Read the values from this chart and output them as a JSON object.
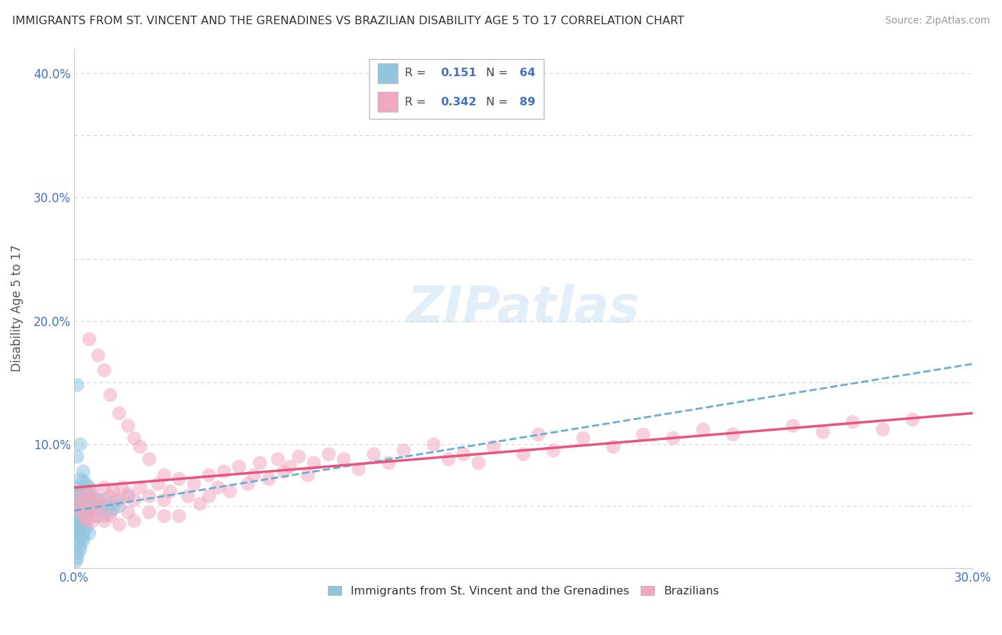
{
  "title": "IMMIGRANTS FROM ST. VINCENT AND THE GRENADINES VS BRAZILIAN DISABILITY AGE 5 TO 17 CORRELATION CHART",
  "source": "Source: ZipAtlas.com",
  "ylabel": "Disability Age 5 to 17",
  "xlim": [
    0.0,
    0.3
  ],
  "ylim": [
    0.0,
    0.42
  ],
  "xtick_vals": [
    0.0,
    0.05,
    0.1,
    0.15,
    0.2,
    0.25,
    0.3
  ],
  "xticklabels": [
    "0.0%",
    "",
    "",
    "",
    "",
    "",
    "30.0%"
  ],
  "ytick_vals": [
    0.0,
    0.05,
    0.1,
    0.15,
    0.2,
    0.25,
    0.3,
    0.35,
    0.4
  ],
  "yticklabels": [
    "",
    "",
    "10.0%",
    "",
    "20.0%",
    "",
    "30.0%",
    "",
    "40.0%"
  ],
  "blue_color": "#92C5E0",
  "pink_color": "#F4A8C0",
  "blue_line_color": "#6AADD5",
  "pink_line_color": "#E8557A",
  "tick_color": "#4472c4",
  "legend_text_color": "#4472c4",
  "legend_blue_r": "0.151",
  "legend_blue_n": "64",
  "legend_pink_r": "0.342",
  "legend_pink_n": "89",
  "grid_color": "#cccccc",
  "watermark_text": "ZIPatlas",
  "blue_x": [
    0.0005,
    0.001,
    0.001,
    0.001,
    0.001,
    0.001,
    0.0015,
    0.0015,
    0.002,
    0.002,
    0.002,
    0.002,
    0.002,
    0.002,
    0.0025,
    0.003,
    0.003,
    0.003,
    0.003,
    0.003,
    0.004,
    0.004,
    0.004,
    0.004,
    0.005,
    0.005,
    0.005,
    0.006,
    0.006,
    0.007,
    0.007,
    0.008,
    0.009,
    0.01,
    0.01,
    0.011,
    0.012,
    0.013,
    0.014,
    0.015,
    0.018,
    0.001,
    0.001,
    0.001,
    0.002,
    0.002,
    0.003,
    0.003,
    0.004,
    0.005,
    0.001,
    0.002,
    0.003,
    0.004,
    0.0005,
    0.001,
    0.001,
    0.002,
    0.002,
    0.003,
    0.001,
    0.002,
    0.001,
    0.001
  ],
  "blue_y": [
    0.065,
    0.05,
    0.055,
    0.06,
    0.045,
    0.038,
    0.052,
    0.042,
    0.048,
    0.055,
    0.04,
    0.06,
    0.035,
    0.058,
    0.052,
    0.045,
    0.062,
    0.038,
    0.055,
    0.07,
    0.048,
    0.042,
    0.062,
    0.038,
    0.055,
    0.045,
    0.065,
    0.048,
    0.058,
    0.052,
    0.042,
    0.055,
    0.048,
    0.055,
    0.042,
    0.05,
    0.045,
    0.048,
    0.055,
    0.05,
    0.058,
    0.03,
    0.028,
    0.032,
    0.025,
    0.035,
    0.03,
    0.022,
    0.032,
    0.028,
    0.148,
    0.1,
    0.078,
    0.068,
    0.005,
    0.008,
    0.012,
    0.018,
    0.015,
    0.025,
    0.09,
    0.072,
    0.02,
    0.06
  ],
  "pink_x": [
    0.001,
    0.002,
    0.003,
    0.003,
    0.004,
    0.004,
    0.005,
    0.005,
    0.006,
    0.006,
    0.007,
    0.008,
    0.008,
    0.009,
    0.01,
    0.01,
    0.012,
    0.012,
    0.013,
    0.015,
    0.015,
    0.016,
    0.018,
    0.018,
    0.02,
    0.02,
    0.022,
    0.025,
    0.025,
    0.028,
    0.03,
    0.03,
    0.032,
    0.035,
    0.035,
    0.038,
    0.04,
    0.042,
    0.045,
    0.045,
    0.048,
    0.05,
    0.052,
    0.055,
    0.058,
    0.06,
    0.062,
    0.065,
    0.068,
    0.07,
    0.072,
    0.075,
    0.078,
    0.08,
    0.085,
    0.09,
    0.095,
    0.1,
    0.105,
    0.11,
    0.12,
    0.125,
    0.13,
    0.135,
    0.14,
    0.15,
    0.155,
    0.16,
    0.17,
    0.18,
    0.19,
    0.2,
    0.21,
    0.22,
    0.24,
    0.25,
    0.26,
    0.27,
    0.28,
    0.005,
    0.008,
    0.01,
    0.012,
    0.015,
    0.018,
    0.02,
    0.022,
    0.025,
    0.03
  ],
  "pink_y": [
    0.055,
    0.048,
    0.06,
    0.042,
    0.052,
    0.038,
    0.058,
    0.045,
    0.062,
    0.038,
    0.048,
    0.055,
    0.042,
    0.052,
    0.065,
    0.038,
    0.058,
    0.042,
    0.062,
    0.055,
    0.035,
    0.065,
    0.06,
    0.045,
    0.055,
    0.038,
    0.065,
    0.058,
    0.045,
    0.068,
    0.055,
    0.042,
    0.062,
    0.072,
    0.042,
    0.058,
    0.068,
    0.052,
    0.075,
    0.058,
    0.065,
    0.078,
    0.062,
    0.082,
    0.068,
    0.075,
    0.085,
    0.072,
    0.088,
    0.078,
    0.082,
    0.09,
    0.075,
    0.085,
    0.092,
    0.088,
    0.08,
    0.092,
    0.085,
    0.095,
    0.1,
    0.088,
    0.092,
    0.085,
    0.098,
    0.092,
    0.108,
    0.095,
    0.105,
    0.098,
    0.108,
    0.105,
    0.112,
    0.108,
    0.115,
    0.11,
    0.118,
    0.112,
    0.12,
    0.185,
    0.172,
    0.16,
    0.14,
    0.125,
    0.115,
    0.105,
    0.098,
    0.088,
    0.075
  ]
}
